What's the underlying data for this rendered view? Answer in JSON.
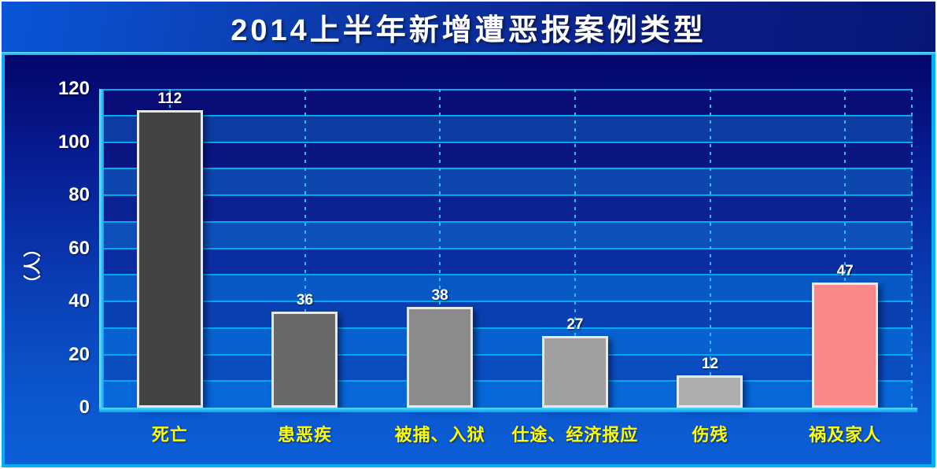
{
  "slide": {
    "title": "2014上半年新增遭恶报案例类型"
  },
  "chart_data": {
    "type": "bar",
    "title": "2014上半年新增遭恶报案例类型",
    "categories": [
      "死亡",
      "患恶疾",
      "被捕、入狱",
      "仕途、经济报应",
      "伤残",
      "祸及家人"
    ],
    "values": [
      112,
      36,
      38,
      27,
      12,
      47
    ],
    "bar_colors": [
      "#434343",
      "#696969",
      "#8b8b8b",
      "#a0a0a0",
      "#aeaeae",
      "#fb8888"
    ],
    "bar_border_color": "#e8e8e8",
    "xlabel": "",
    "ylabel": "（人）",
    "ylim": [
      0,
      120
    ],
    "yticks": [
      0,
      20,
      40,
      60,
      80,
      100,
      120
    ],
    "grid_step": 10,
    "grid": true,
    "legend": false,
    "value_labels_shown": true,
    "colors": {
      "accent_cyan": "#00b0f0",
      "grid_line": "#00aaec",
      "axis_line": "#1cc2f8",
      "tick_label": "#ffffff",
      "value_label": "#ffffff",
      "category_label": "#ffff00",
      "title_color": "#ffffff"
    }
  }
}
